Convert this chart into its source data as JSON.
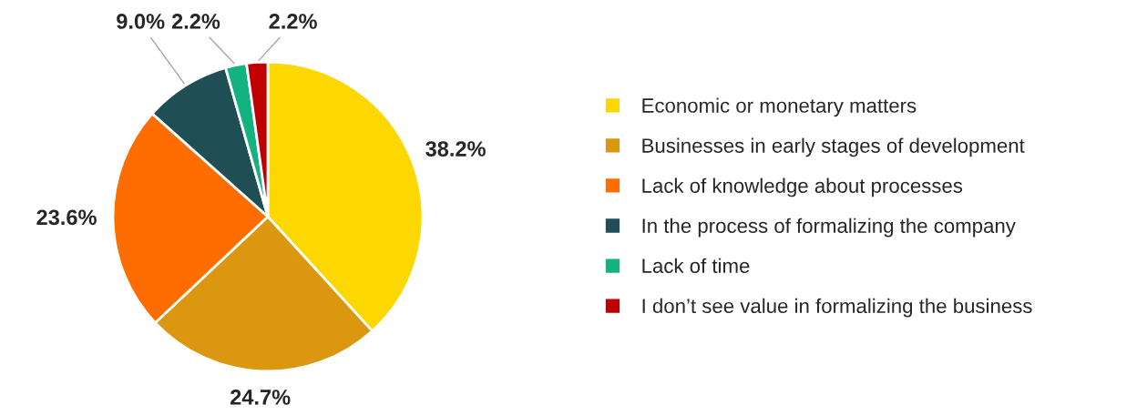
{
  "chart_data": {
    "type": "pie",
    "categories": [
      "Economic or monetary matters",
      "Businesses in early stages of development",
      "Lack of knowledge about processes",
      "In the process of formalizing the company",
      "Lack of time",
      "I don’t see value in formalizing the business"
    ],
    "values": [
      38.2,
      24.7,
      23.6,
      9.0,
      2.2,
      2.2
    ],
    "colors": [
      "#fcd700",
      "#dc9711",
      "#ff6d00",
      "#1f4e55",
      "#13b27e",
      "#c00000"
    ],
    "value_labels": [
      "38.2%",
      "24.7%",
      "23.6%",
      "9.0%",
      "2.2%",
      "2.2%"
    ],
    "legend": "right"
  }
}
